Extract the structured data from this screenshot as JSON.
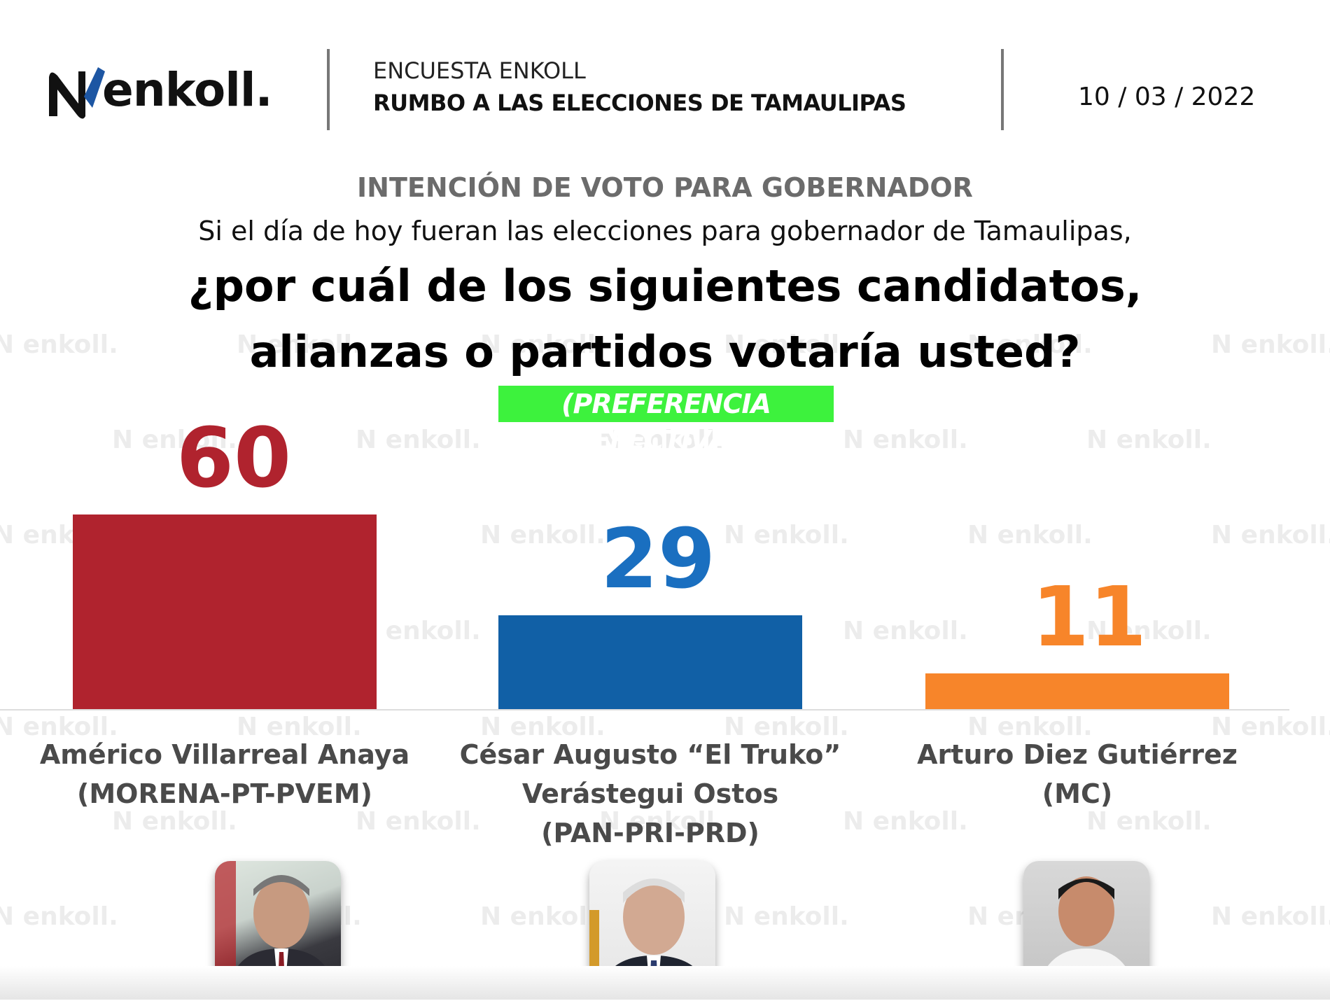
{
  "header": {
    "logo_text": "enkoll.",
    "survey_label": "ENCUESTA ENKOLL",
    "survey_title": "RUMBO A LAS ELECCIONES DE TAMAULIPAS",
    "date": "10 / 03 / 2022"
  },
  "question": {
    "section_title": "INTENCIÓN DE VOTO PARA GOBERNADOR",
    "line1": "Si el día de hoy fueran las elecciones para gobernador de Tamaulipas,",
    "line2": "¿por cuál de los siguientes candidatos,",
    "line3": "alianzas o partidos votaría usted?",
    "badge": "(PREFERENCIA EFECTIVA)"
  },
  "watermark": "enkoll.",
  "chart_data": {
    "type": "bar",
    "title": "INTENCIÓN DE VOTO PARA GOBERNADOR",
    "categories": [
      [
        "Américo Villarreal Anaya",
        "(MORENA-PT-PVEM)"
      ],
      [
        "César Augusto “El Truko”",
        "Verástegui Ostos",
        "(PAN-PRI-PRD)"
      ],
      [
        "Arturo Diez Gutiérrez (MC)"
      ]
    ],
    "values": [
      60,
      29,
      11
    ],
    "colors": [
      "#b0232e",
      "#1160a6",
      "#f7852a"
    ],
    "label_colors": [
      "#b0232e",
      "#1a6fc0",
      "#f7852a"
    ],
    "ylim": [
      0,
      60
    ],
    "grid": false,
    "xlabel": "",
    "ylabel": ""
  }
}
